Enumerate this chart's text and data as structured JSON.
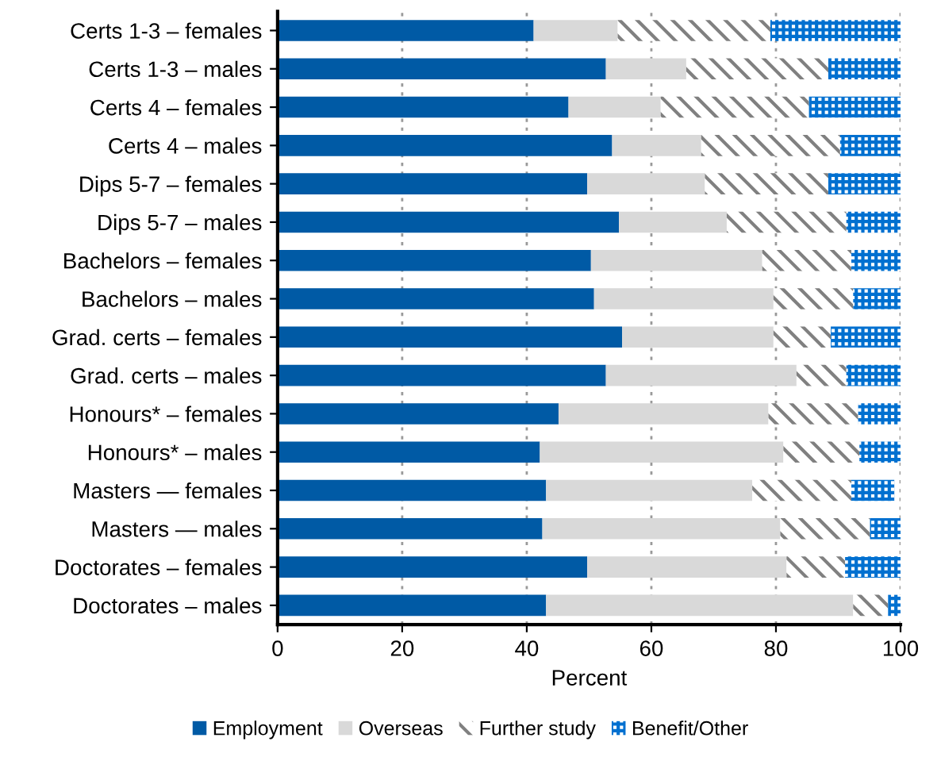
{
  "chart_data": {
    "type": "bar",
    "orientation": "horizontal",
    "stacked": true,
    "xlabel": "Percent",
    "categories": [
      "Certs 1-3 – females",
      "Certs 1-3 – males",
      "Certs 4 – females",
      "Certs 4 – males",
      "Dips 5-7 – females",
      "Dips 5-7 – males",
      "Bachelors – females",
      "Bachelors – males",
      "Grad. certs – females",
      "Grad. certs – males",
      "Honours* – females",
      "Honours* – males",
      "Masters — females",
      "Masters — males",
      "Doctorates – females",
      "Doctorates – males"
    ],
    "series": [
      {
        "name": "Employment",
        "color": "#005aa5",
        "values": [
          41.1,
          52.7,
          46.7,
          53.7,
          49.7,
          54.8,
          50.3,
          50.8,
          55.3,
          52.7,
          45.1,
          42.1,
          43.1,
          42.5,
          49.7,
          43.1
        ]
      },
      {
        "name": "Overseas",
        "color": "#d9d9d9",
        "values": [
          13.5,
          12.9,
          14.8,
          14.3,
          18.9,
          17.3,
          27.5,
          28.8,
          24.3,
          30.6,
          33.7,
          39.1,
          33.1,
          38.2,
          32.0,
          49.3
        ]
      },
      {
        "name": "Further study",
        "color": "#808080",
        "values": [
          24.5,
          22.8,
          23.8,
          22.3,
          19.8,
          19.2,
          14.3,
          12.8,
          9.2,
          8.0,
          14.4,
          12.2,
          15.9,
          14.4,
          9.4,
          5.6
        ]
      },
      {
        "name": "Benefit/Other",
        "color": "#0070d0",
        "values": [
          21.0,
          11.6,
          14.7,
          9.7,
          11.6,
          8.7,
          7.9,
          7.6,
          11.2,
          8.7,
          6.8,
          6.6,
          6.9,
          4.9,
          8.9,
          2.0
        ]
      }
    ],
    "xlim": [
      0,
      100
    ],
    "xticks": [
      0,
      20,
      40,
      60,
      80,
      100
    ],
    "grid": "x",
    "legend": "bottom"
  }
}
